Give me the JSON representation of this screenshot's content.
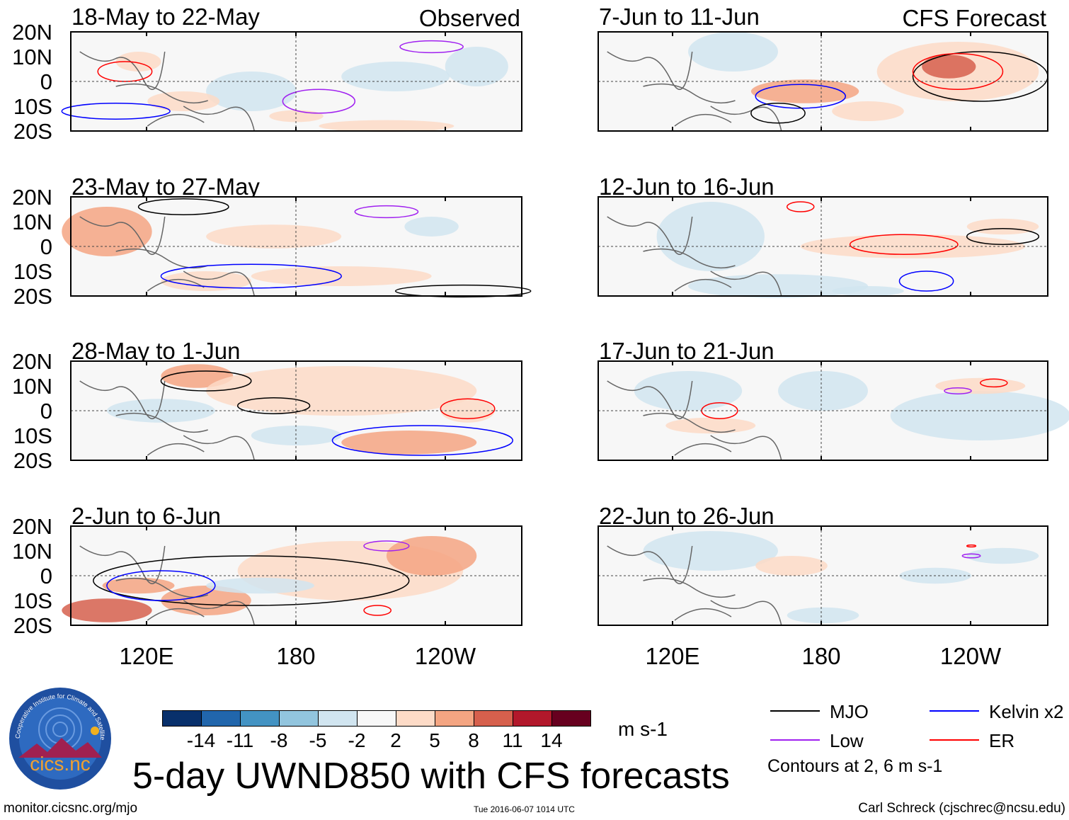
{
  "chart_data": {
    "type": "heatmap",
    "title": "5-day UWND850 with CFS forecasts",
    "units": "m s-1",
    "observed_label": "Observed",
    "forecast_label": "CFS Forecast",
    "panels": [
      {
        "title": "18-May to 22-May",
        "source": "Observed"
      },
      {
        "title": "23-May to 27-May",
        "source": "Observed"
      },
      {
        "title": "28-May to 1-Jun",
        "source": "Observed"
      },
      {
        "title": "2-Jun to 6-Jun",
        "source": "Observed"
      },
      {
        "title": "7-Jun to 11-Jun",
        "source": "CFS Forecast"
      },
      {
        "title": "12-Jun to 16-Jun",
        "source": "CFS Forecast"
      },
      {
        "title": "17-Jun to 21-Jun",
        "source": "CFS Forecast"
      },
      {
        "title": "22-Jun to 26-Jun",
        "source": "CFS Forecast"
      }
    ],
    "lat_ticks": [
      "20N",
      "10N",
      "0",
      "10S",
      "20S"
    ],
    "lon_ticks": [
      "120E",
      "180",
      "120W"
    ],
    "ylim": [
      -20,
      20
    ],
    "colorbar": {
      "levels": [
        "-14",
        "-11",
        "-8",
        "-5",
        "-2",
        "2",
        "5",
        "8",
        "11",
        "14"
      ],
      "colors": [
        "#08306b",
        "#2166ac",
        "#4393c3",
        "#92c5de",
        "#d1e5f0",
        "#f7f7f7",
        "#fddbc7",
        "#f4a582",
        "#d6604d",
        "#b2182b",
        "#67001f"
      ],
      "units": "m s-1"
    },
    "legend": [
      {
        "label": "MJO",
        "color": "#000000"
      },
      {
        "label": "Kelvin x2",
        "color": "#0000ff"
      },
      {
        "label": "Low",
        "color": "#a020f0"
      },
      {
        "label": "ER",
        "color": "#ff0000"
      }
    ],
    "contour_note": "Contours at 2, 6 m s-1"
  },
  "footer": {
    "url": "monitor.cicsnc.org/mjo",
    "timestamp": "Tue 2016-06-07 1014 UTC",
    "author": "Carl Schreck (cjschrec@ncsu.edu)"
  },
  "logo": {
    "name": "cics.nc",
    "ring_text": "Cooperative Institute for Climate and Satellites"
  }
}
